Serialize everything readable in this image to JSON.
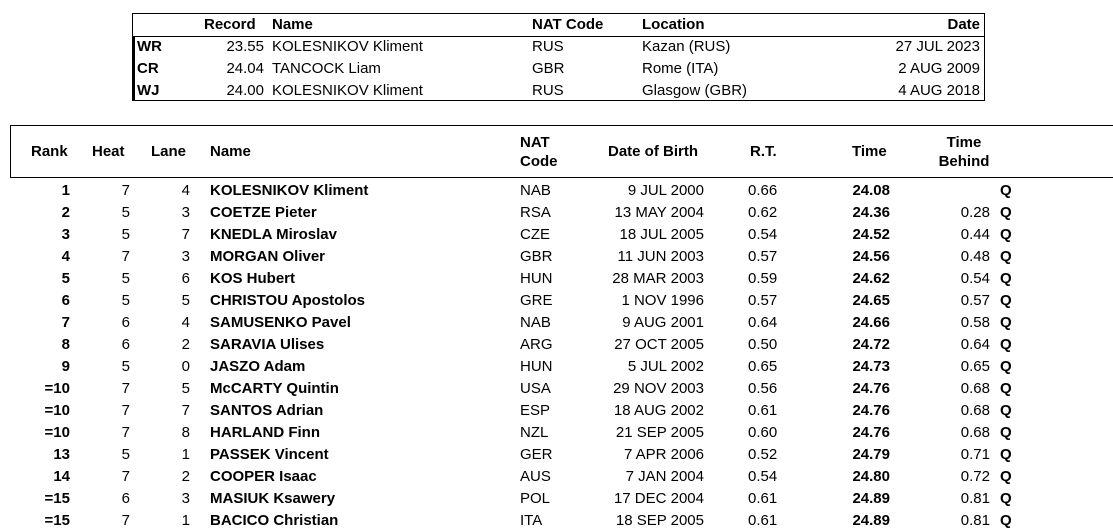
{
  "records": {
    "headers": {
      "record": "Record",
      "name": "Name",
      "nat": "NAT Code",
      "location": "Location",
      "date": "Date"
    },
    "rows": [
      {
        "code": "WR",
        "time": "23.55",
        "name": "KOLESNIKOV Kliment",
        "nat": "RUS",
        "location": "Kazan (RUS)",
        "date": "27 JUL 2023"
      },
      {
        "code": "CR",
        "time": "24.04",
        "name": "TANCOCK Liam",
        "nat": "GBR",
        "location": "Rome (ITA)",
        "date": "2 AUG 2009"
      },
      {
        "code": "WJ",
        "time": "24.00",
        "name": "KOLESNIKOV Kliment",
        "nat": "RUS",
        "location": "Glasgow (GBR)",
        "date": "4 AUG 2018"
      }
    ]
  },
  "results": {
    "headers": {
      "rank": "Rank",
      "heat": "Heat",
      "lane": "Lane",
      "name": "Name",
      "nat_line1": "NAT",
      "nat_line2": "Code",
      "dob": "Date of Birth",
      "rt": "R.T.",
      "time": "Time",
      "behind_line1": "Time",
      "behind_line2": "Behind"
    },
    "rows": [
      {
        "rank": "1",
        "heat": "7",
        "lane": "4",
        "name": "KOLESNIKOV Kliment",
        "nat": "NAB",
        "dob": "9 JUL 2000",
        "rt": "0.66",
        "time": "24.08",
        "behind": "",
        "q": "Q"
      },
      {
        "rank": "2",
        "heat": "5",
        "lane": "3",
        "name": "COETZE Pieter",
        "nat": "RSA",
        "dob": "13 MAY 2004",
        "rt": "0.62",
        "time": "24.36",
        "behind": "0.28",
        "q": "Q"
      },
      {
        "rank": "3",
        "heat": "5",
        "lane": "7",
        "name": "KNEDLA Miroslav",
        "nat": "CZE",
        "dob": "18 JUL 2005",
        "rt": "0.54",
        "time": "24.52",
        "behind": "0.44",
        "q": "Q"
      },
      {
        "rank": "4",
        "heat": "7",
        "lane": "3",
        "name": "MORGAN Oliver",
        "nat": "GBR",
        "dob": "11 JUN 2003",
        "rt": "0.57",
        "time": "24.56",
        "behind": "0.48",
        "q": "Q"
      },
      {
        "rank": "5",
        "heat": "5",
        "lane": "6",
        "name": "KOS Hubert",
        "nat": "HUN",
        "dob": "28 MAR 2003",
        "rt": "0.59",
        "time": "24.62",
        "behind": "0.54",
        "q": "Q"
      },
      {
        "rank": "6",
        "heat": "5",
        "lane": "5",
        "name": "CHRISTOU Apostolos",
        "nat": "GRE",
        "dob": "1 NOV 1996",
        "rt": "0.57",
        "time": "24.65",
        "behind": "0.57",
        "q": "Q"
      },
      {
        "rank": "7",
        "heat": "6",
        "lane": "4",
        "name": "SAMUSENKO Pavel",
        "nat": "NAB",
        "dob": "9 AUG 2001",
        "rt": "0.64",
        "time": "24.66",
        "behind": "0.58",
        "q": "Q"
      },
      {
        "rank": "8",
        "heat": "6",
        "lane": "2",
        "name": "SARAVIA Ulises",
        "nat": "ARG",
        "dob": "27 OCT 2005",
        "rt": "0.50",
        "time": "24.72",
        "behind": "0.64",
        "q": "Q"
      },
      {
        "rank": "9",
        "heat": "5",
        "lane": "0",
        "name": "JASZO Adam",
        "nat": "HUN",
        "dob": "5 JUL 2002",
        "rt": "0.65",
        "time": "24.73",
        "behind": "0.65",
        "q": "Q"
      },
      {
        "rank": "=10",
        "heat": "7",
        "lane": "5",
        "name": "McCARTY Quintin",
        "nat": "USA",
        "dob": "29 NOV 2003",
        "rt": "0.56",
        "time": "24.76",
        "behind": "0.68",
        "q": "Q"
      },
      {
        "rank": "=10",
        "heat": "7",
        "lane": "7",
        "name": "SANTOS Adrian",
        "nat": "ESP",
        "dob": "18 AUG 2002",
        "rt": "0.61",
        "time": "24.76",
        "behind": "0.68",
        "q": "Q"
      },
      {
        "rank": "=10",
        "heat": "7",
        "lane": "8",
        "name": "HARLAND Finn",
        "nat": "NZL",
        "dob": "21 SEP 2005",
        "rt": "0.60",
        "time": "24.76",
        "behind": "0.68",
        "q": "Q"
      },
      {
        "rank": "13",
        "heat": "5",
        "lane": "1",
        "name": "PASSEK Vincent",
        "nat": "GER",
        "dob": "7 APR 2006",
        "rt": "0.52",
        "time": "24.79",
        "behind": "0.71",
        "q": "Q"
      },
      {
        "rank": "14",
        "heat": "7",
        "lane": "2",
        "name": "COOPER Isaac",
        "nat": "AUS",
        "dob": "7 JAN 2004",
        "rt": "0.54",
        "time": "24.80",
        "behind": "0.72",
        "q": "Q"
      },
      {
        "rank": "=15",
        "heat": "6",
        "lane": "3",
        "name": "MASIUK Ksawery",
        "nat": "POL",
        "dob": "17 DEC 2004",
        "rt": "0.61",
        "time": "24.89",
        "behind": "0.81",
        "q": "Q"
      },
      {
        "rank": "=15",
        "heat": "7",
        "lane": "1",
        "name": "BACICO Christian",
        "nat": "ITA",
        "dob": "18 SEP 2005",
        "rt": "0.61",
        "time": "24.89",
        "behind": "0.81",
        "q": "Q"
      }
    ]
  }
}
